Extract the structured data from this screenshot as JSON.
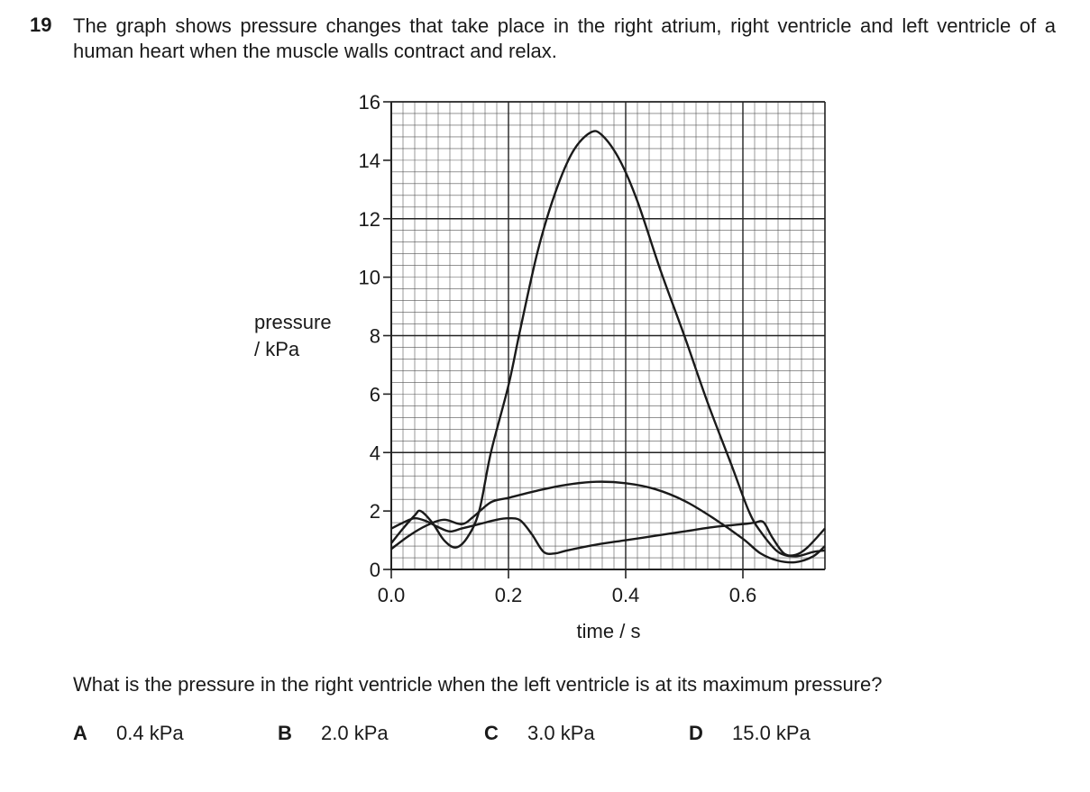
{
  "question": {
    "number": "19",
    "stem": "The graph shows pressure changes that take place in the right atrium, right ventricle and left ventricle of a human heart when the muscle walls contract and relax.",
    "prompt": "What is the pressure in the right ventricle when the left ventricle is at its maximum pressure?",
    "options": [
      {
        "letter": "A",
        "text": "0.4 kPa"
      },
      {
        "letter": "B",
        "text": "2.0 kPa"
      },
      {
        "letter": "C",
        "text": "3.0 kPa"
      },
      {
        "letter": "D",
        "text": "15.0 kPa"
      }
    ]
  },
  "chart_data": {
    "type": "line",
    "title": "",
    "xlabel": "time / s",
    "ylabel": "pressure / kPa",
    "xlim": [
      0,
      0.74
    ],
    "ylim": [
      0,
      16
    ],
    "x_ticks": [
      0.0,
      0.2,
      0.4,
      0.6
    ],
    "x_tick_labels": [
      "0.0",
      "0.2",
      "0.4",
      "0.6"
    ],
    "y_ticks": [
      0,
      2,
      4,
      6,
      8,
      10,
      12,
      14,
      16
    ],
    "y_tick_labels": [
      "0",
      "2",
      "4",
      "6",
      "8",
      "10",
      "12",
      "14",
      "16"
    ],
    "grid": {
      "major_x": 0.2,
      "major_y": 4,
      "minor_x": 0.02,
      "minor_y": 0.4
    },
    "legend": "none",
    "series": [
      {
        "points": [
          [
            0,
            0.7
          ],
          [
            0.03,
            1.15
          ],
          [
            0.06,
            1.5
          ],
          [
            0.09,
            1.7
          ],
          [
            0.12,
            1.55
          ],
          [
            0.14,
            1.8
          ],
          [
            0.17,
            2.3
          ],
          [
            0.2,
            2.45
          ],
          [
            0.25,
            2.7
          ],
          [
            0.3,
            2.9
          ],
          [
            0.35,
            3.0
          ],
          [
            0.4,
            2.95
          ],
          [
            0.45,
            2.75
          ],
          [
            0.5,
            2.35
          ],
          [
            0.55,
            1.75
          ],
          [
            0.6,
            1.05
          ],
          [
            0.63,
            0.55
          ],
          [
            0.66,
            0.3
          ],
          [
            0.69,
            0.25
          ],
          [
            0.72,
            0.45
          ],
          [
            0.74,
            0.8
          ]
        ]
      },
      {
        "points": [
          [
            0,
            0.9
          ],
          [
            0.02,
            1.4
          ],
          [
            0.04,
            1.85
          ],
          [
            0.05,
            2.0
          ],
          [
            0.07,
            1.6
          ],
          [
            0.09,
            1.0
          ],
          [
            0.11,
            0.75
          ],
          [
            0.13,
            1.1
          ],
          [
            0.15,
            2.0
          ],
          [
            0.17,
            4.0
          ],
          [
            0.2,
            6.3
          ],
          [
            0.22,
            8.2
          ],
          [
            0.25,
            10.9
          ],
          [
            0.28,
            12.9
          ],
          [
            0.31,
            14.3
          ],
          [
            0.34,
            14.95
          ],
          [
            0.36,
            14.85
          ],
          [
            0.39,
            14.0
          ],
          [
            0.42,
            12.6
          ],
          [
            0.46,
            10.2
          ],
          [
            0.5,
            8.0
          ],
          [
            0.54,
            5.7
          ],
          [
            0.58,
            3.6
          ],
          [
            0.61,
            2.0
          ],
          [
            0.63,
            1.3
          ],
          [
            0.66,
            0.6
          ],
          [
            0.69,
            0.45
          ],
          [
            0.72,
            0.6
          ],
          [
            0.74,
            0.65
          ]
        ]
      },
      {
        "points": [
          [
            0,
            1.4
          ],
          [
            0.02,
            1.6
          ],
          [
            0.04,
            1.75
          ],
          [
            0.06,
            1.65
          ],
          [
            0.08,
            1.45
          ],
          [
            0.1,
            1.3
          ],
          [
            0.12,
            1.4
          ],
          [
            0.15,
            1.55
          ],
          [
            0.18,
            1.7
          ],
          [
            0.2,
            1.75
          ],
          [
            0.22,
            1.68
          ],
          [
            0.24,
            1.2
          ],
          [
            0.26,
            0.6
          ],
          [
            0.28,
            0.55
          ],
          [
            0.3,
            0.65
          ],
          [
            0.35,
            0.85
          ],
          [
            0.4,
            1.0
          ],
          [
            0.45,
            1.15
          ],
          [
            0.5,
            1.3
          ],
          [
            0.55,
            1.45
          ],
          [
            0.6,
            1.55
          ],
          [
            0.62,
            1.6
          ],
          [
            0.635,
            1.62
          ],
          [
            0.65,
            1.1
          ],
          [
            0.67,
            0.55
          ],
          [
            0.69,
            0.5
          ],
          [
            0.71,
            0.75
          ],
          [
            0.74,
            1.4
          ]
        ]
      }
    ]
  }
}
